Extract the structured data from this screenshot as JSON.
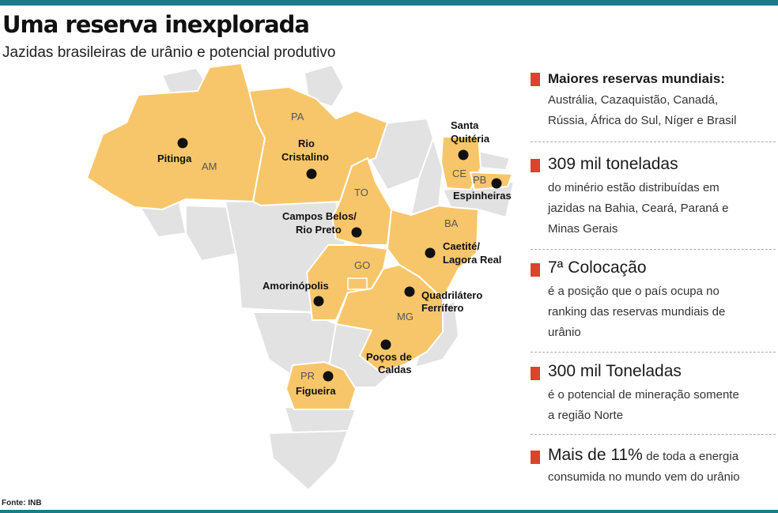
{
  "title": "Uma reserva inexplorada",
  "subtitle": "Jazidas brasileiras de urânio e potencial produtivo",
  "source": "Fonte: INB",
  "colors": {
    "accent_bar": "#1b7a8c",
    "state_highlight": "#f8c66a",
    "state_other": "#e2e2e2",
    "marker": "#d9442d"
  },
  "states": {
    "am": "AM",
    "pa": "PA",
    "to": "TO",
    "ce": "CE",
    "pb": "PB",
    "ba": "BA",
    "go": "GO",
    "mg": "MG",
    "pr": "PR"
  },
  "sites": {
    "pitinga": "Pitinga",
    "rio_cristalino_1": "Rio",
    "rio_cristalino_2": "Cristalino",
    "campos_belos_1": "Campos Belos/",
    "campos_belos_2": "Rio Preto",
    "amorinopolis": "Amorinópolis",
    "santa_quiteria_1": "Santa",
    "santa_quiteria_2": "Quitéria",
    "espinheiras": "Espinheiras",
    "caetite_1": "Caetité/",
    "caetite_2": "Lagora Real",
    "quadrilatero_1": "Quadrilátero",
    "quadrilatero_2": "Ferrífero",
    "pocos_1": "Poços de",
    "pocos_2": "Caldas",
    "figueira": "Figueira"
  },
  "facts": [
    {
      "head": "Maiores reservas mundiais:",
      "tail": "",
      "body": [
        "Austrália, Cazaquistão, Canadá,",
        "Rússia, África do Sul, Níger e Brasil"
      ]
    },
    {
      "head": "309 mil toneladas",
      "tail": "",
      "body": [
        "do minério estão distribuídas em",
        "jazidas na Bahia, Ceará, Paraná e",
        "Minas Gerais"
      ]
    },
    {
      "head": "7ª Colocação",
      "tail": "",
      "body": [
        "é a posição que o país ocupa no",
        "ranking das reservas mundiais de",
        "urânio"
      ]
    },
    {
      "head": "300 mil Toneladas",
      "tail": "",
      "body": [
        "é o potencial de mineração somente",
        "a região Norte"
      ]
    },
    {
      "head": "Mais de 11%",
      "tail": "de toda a energia",
      "body": [
        "consumida no mundo vem do urânio"
      ]
    }
  ]
}
